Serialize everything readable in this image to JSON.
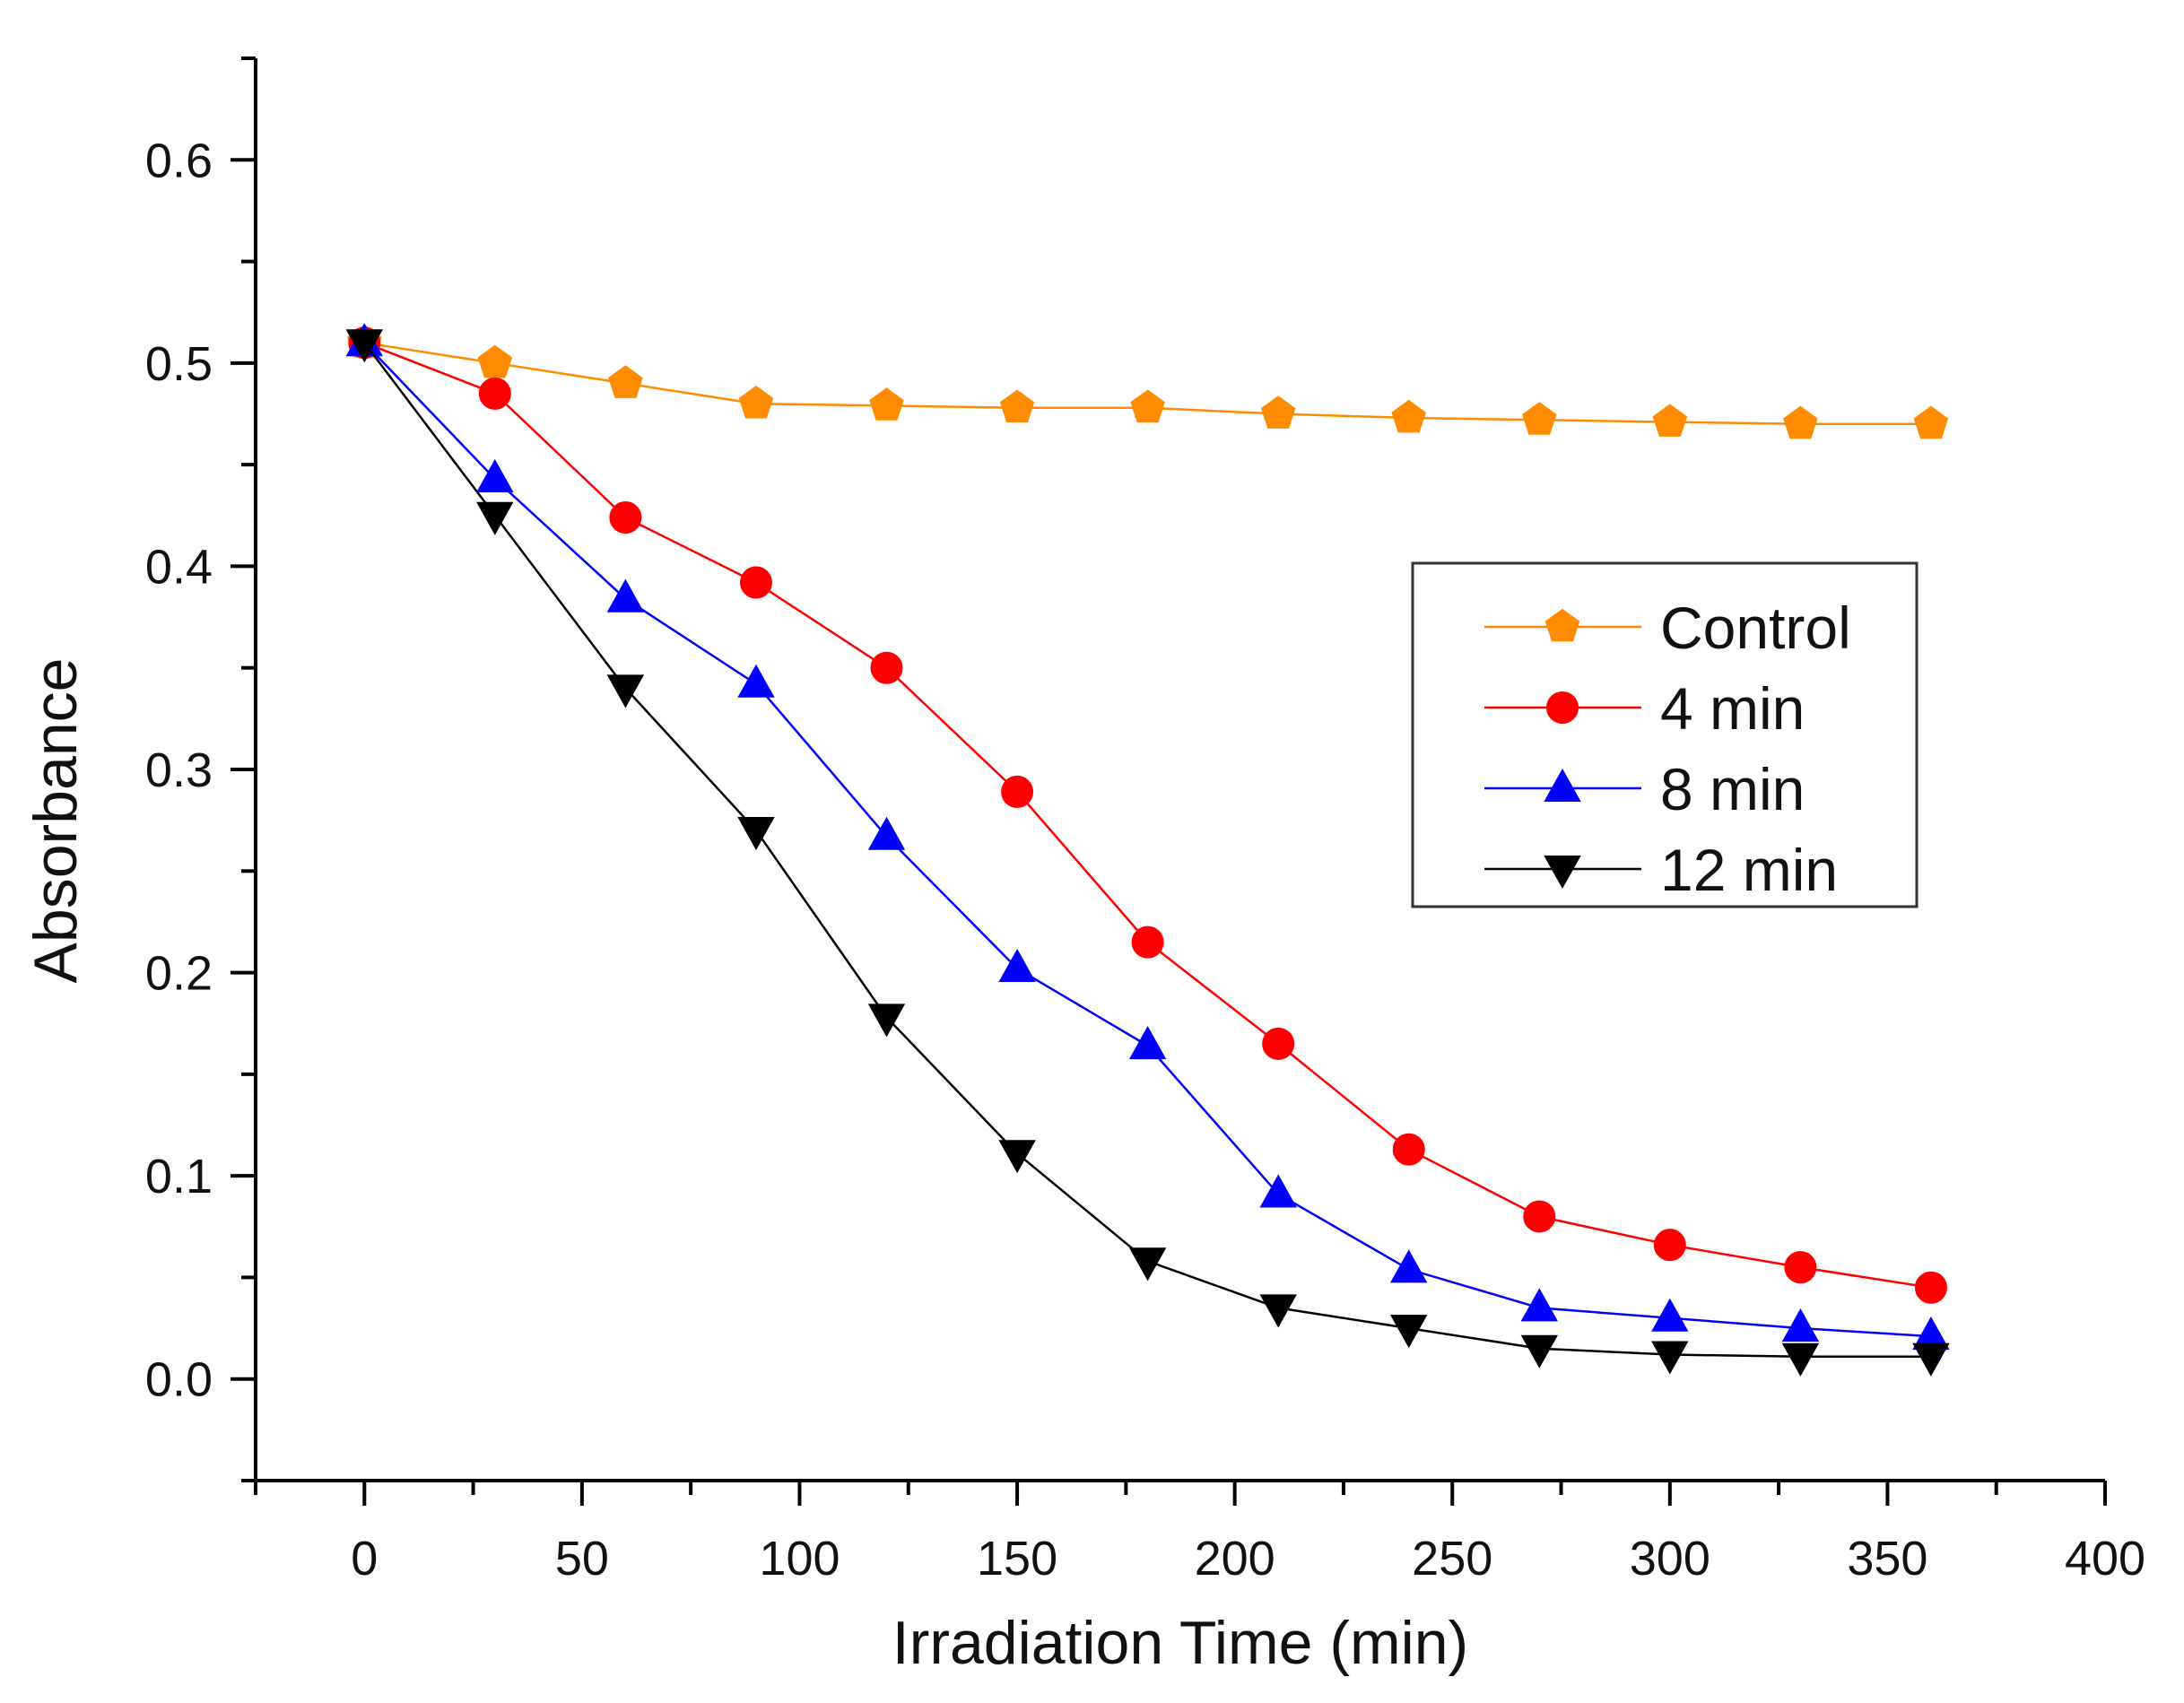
{
  "chart_data": {
    "type": "line",
    "title": "",
    "xlabel": "Irradiation Time (min)",
    "ylabel": "Absorbance",
    "xlim": [
      -25,
      400
    ],
    "ylim": [
      -0.05,
      0.65
    ],
    "x_ticks": [
      0,
      50,
      100,
      150,
      200,
      250,
      300,
      350,
      400
    ],
    "x_tick_labels": [
      "0",
      "50",
      "100",
      "150",
      "200",
      "250",
      "300",
      "350",
      "400"
    ],
    "y_ticks": [
      0.0,
      0.1,
      0.2,
      0.3,
      0.4,
      0.5,
      0.6
    ],
    "y_tick_labels": [
      "0.0",
      "0.1",
      "0.2",
      "0.3",
      "0.4",
      "0.5",
      "0.6"
    ],
    "grid": false,
    "legend_position": "right",
    "x": [
      0,
      30,
      60,
      90,
      120,
      150,
      180,
      210,
      240,
      270,
      300,
      330,
      360
    ],
    "series": [
      {
        "name": "Control",
        "color": "#ff8c00",
        "marker": "pentagon",
        "values": [
          0.51,
          0.5,
          0.49,
          0.48,
          0.479,
          0.478,
          0.478,
          0.475,
          0.473,
          0.472,
          0.471,
          0.47,
          0.47
        ]
      },
      {
        "name": "4 min",
        "color": "#ff0000",
        "marker": "circle",
        "values": [
          0.51,
          0.485,
          0.424,
          0.392,
          0.35,
          0.289,
          0.215,
          0.165,
          0.113,
          0.08,
          0.066,
          0.055,
          0.045
        ]
      },
      {
        "name": "8 min",
        "color": "#0000ff",
        "marker": "triangle-up",
        "values": [
          0.51,
          0.443,
          0.384,
          0.342,
          0.267,
          0.202,
          0.164,
          0.091,
          0.054,
          0.035,
          0.03,
          0.025,
          0.021
        ]
      },
      {
        "name": "12 min",
        "color": "#000000",
        "marker": "triangle-down",
        "values": [
          0.51,
          0.425,
          0.34,
          0.27,
          0.178,
          0.111,
          0.058,
          0.035,
          0.025,
          0.015,
          0.012,
          0.011,
          0.011
        ]
      }
    ]
  }
}
